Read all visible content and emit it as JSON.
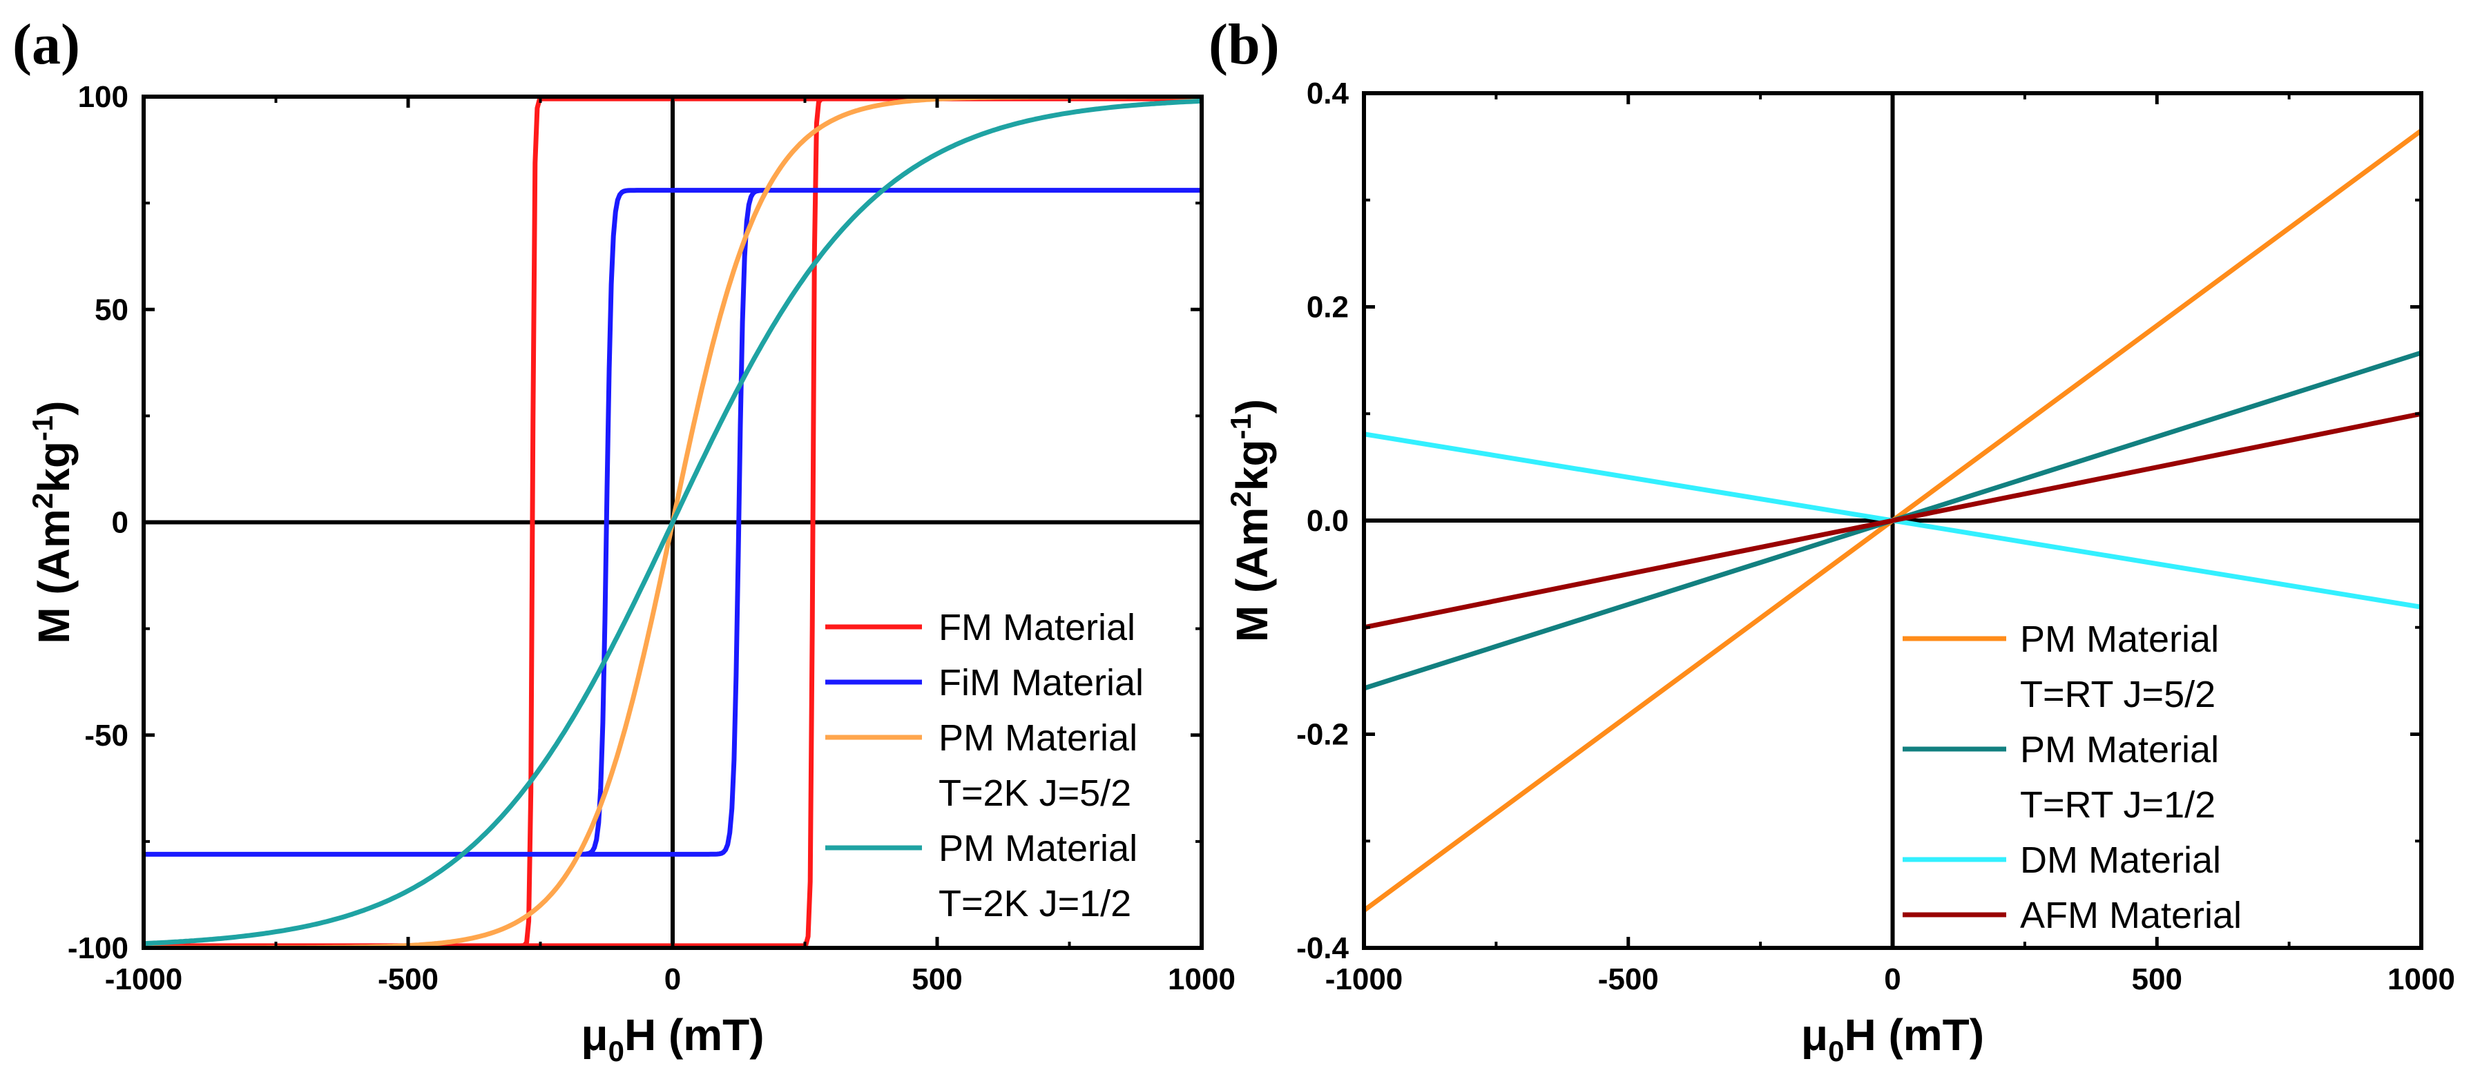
{
  "panels": [
    {
      "label": "(a)",
      "title": "",
      "xlabel": {
        "prefix": "μ",
        "sub": "0",
        "suffix": "H (mT)"
      },
      "ylabel": {
        "pre": "M (Am",
        "sup1": "2",
        "mid": "kg",
        "sup2": "-1",
        "post": ")"
      },
      "xlim": [
        -1000,
        1000
      ],
      "ylim": [
        -100,
        100
      ],
      "xticks": [
        "-1000",
        "-500",
        "0",
        "500",
        "1000"
      ],
      "yticks": [
        "-100",
        "-50",
        "0",
        "50",
        "100"
      ]
    },
    {
      "label": "(b)",
      "title": "",
      "xlabel": {
        "prefix": "μ",
        "sub": "0",
        "suffix": "H (mT)"
      },
      "ylabel": {
        "pre": "M (Am",
        "sup1": "2",
        "mid": "kg",
        "sup2": "-1",
        "post": ")"
      },
      "xlim": [
        -1000,
        1000
      ],
      "ylim": [
        -0.4,
        0.4
      ],
      "xticks": [
        "-1000",
        "-500",
        "0",
        "500",
        "1000"
      ],
      "yticks": [
        "-0.4",
        "-0.2",
        "0.0",
        "0.2",
        "0.4"
      ]
    }
  ],
  "chart_data": [
    {
      "type": "line",
      "panel": "(a)",
      "xlabel": "μ0H (mT)",
      "ylabel": "M (Am2kg-1)",
      "xlim": [
        -1000,
        1000
      ],
      "ylim": [
        -100,
        100
      ],
      "series": [
        {
          "name": "FM Material",
          "legend_lines": [
            "FM Material"
          ],
          "color": "#ff1a1a",
          "model": "hysteresis",
          "Ms": 99.5,
          "Hc": 265,
          "w": 4,
          "note": "square loop, coercive field ~265 mT"
        },
        {
          "name": "FiM Material",
          "legend_lines": [
            "FiM Material"
          ],
          "color": "#1a1aff",
          "model": "hysteresis",
          "Ms": 78,
          "Hc": 125,
          "w": 10,
          "note": "saturation ~78, coercive field ~125 mT"
        },
        {
          "name": "PM Material T=2K J=5/2",
          "legend_lines": [
            "PM Material",
            "T=2K J=5/2"
          ],
          "color": "#ffa64d",
          "model": "tanh",
          "Ms": 100,
          "H0": 170
        },
        {
          "name": "PM Material T=2K J=1/2",
          "legend_lines": [
            "PM Material",
            "T=2K J=1/2"
          ],
          "color": "#1fa3a3",
          "model": "tanh",
          "Ms": 100,
          "H0": 380
        }
      ]
    },
    {
      "type": "line",
      "panel": "(b)",
      "xlabel": "μ0H (mT)",
      "ylabel": "M (Am2kg-1)",
      "xlim": [
        -1000,
        1000
      ],
      "ylim": [
        -0.4,
        0.4
      ],
      "series": [
        {
          "name": "PM Material T=RT J=5/2",
          "legend_lines": [
            "PM Material",
            "T=RT J=5/2"
          ],
          "color": "#ff8c1a",
          "x": [
            -1000,
            1000
          ],
          "y": [
            -0.365,
            0.365
          ]
        },
        {
          "name": "PM Material T=RT J=1/2",
          "legend_lines": [
            "PM Material",
            "T=RT J=1/2"
          ],
          "color": "#128080",
          "x": [
            -1000,
            1000
          ],
          "y": [
            -0.157,
            0.157
          ]
        },
        {
          "name": "DM Material",
          "legend_lines": [
            "DM Material"
          ],
          "color": "#33f0ff",
          "x": [
            -1000,
            1000
          ],
          "y": [
            0.081,
            -0.081
          ]
        },
        {
          "name": "AFM Material",
          "legend_lines": [
            "AFM Material"
          ],
          "color": "#990000",
          "x": [
            -1000,
            1000
          ],
          "y": [
            -0.1,
            0.1
          ]
        }
      ]
    }
  ]
}
